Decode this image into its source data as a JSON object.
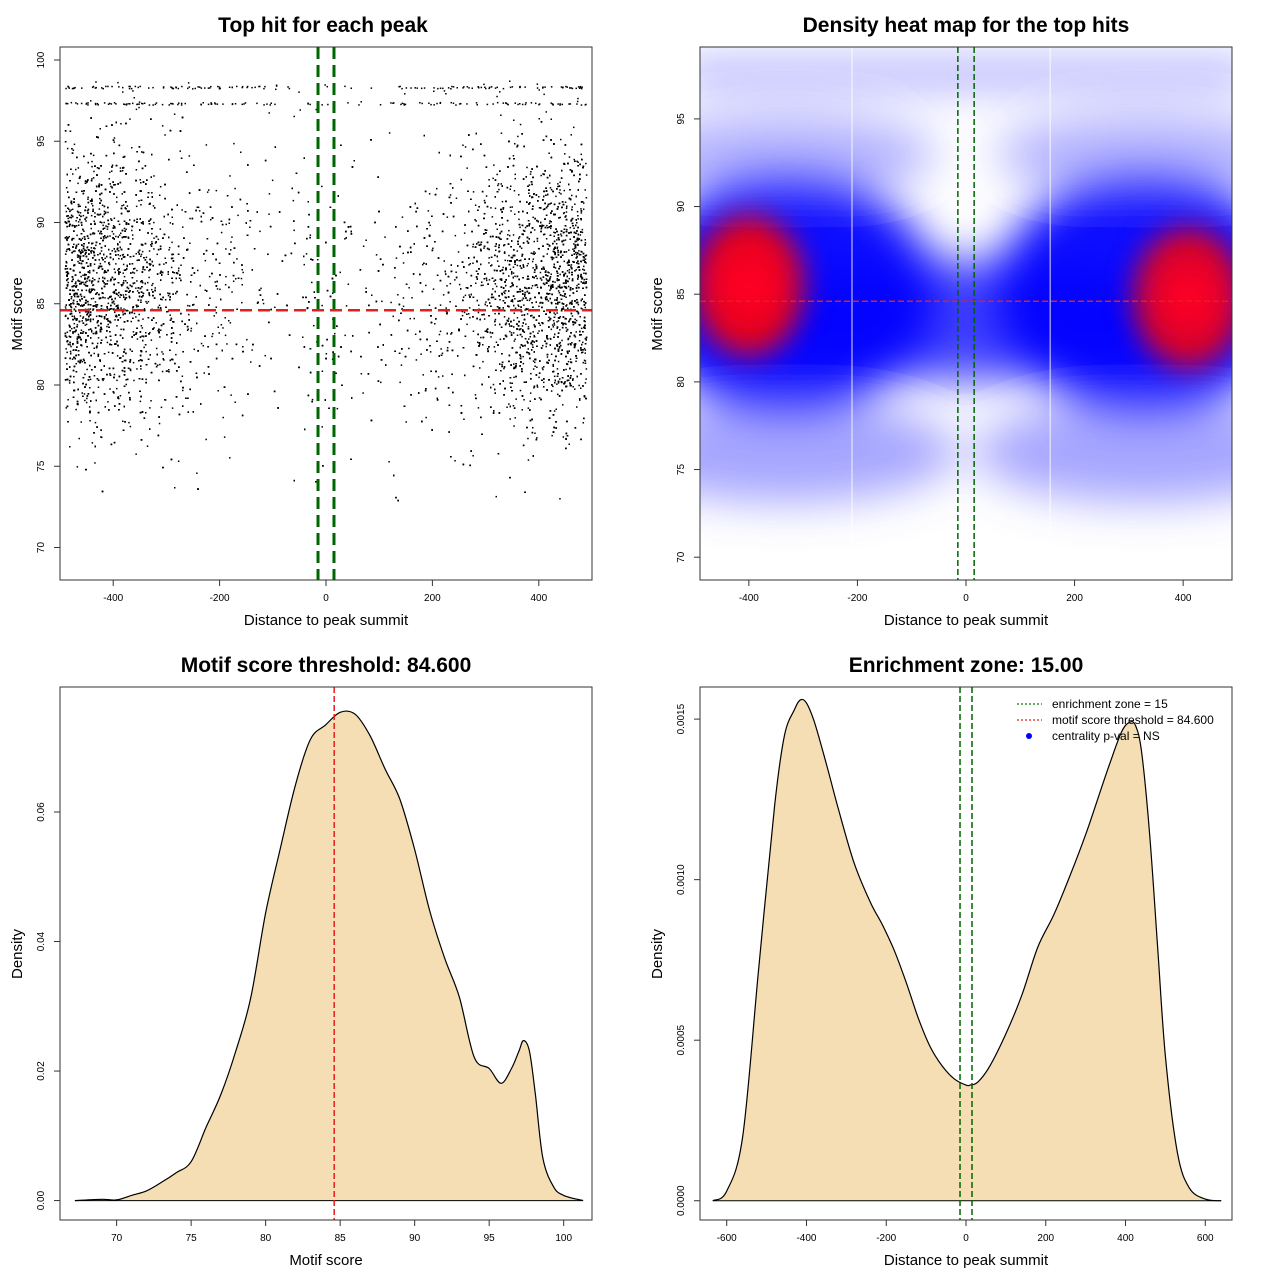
{
  "chart_data": [
    {
      "type": "scatter",
      "title": "Top hit for each peak",
      "xlabel": "Distance to peak summit",
      "ylabel": "Motif score",
      "xlim": [
        -500,
        500
      ],
      "ylim": [
        68,
        100.8
      ],
      "xticks": [
        -400,
        -200,
        0,
        200,
        400
      ],
      "yticks": [
        70,
        75,
        80,
        85,
        90,
        95,
        100
      ],
      "point_color": "#000000",
      "enrichment_zone_lines": [
        -15,
        15
      ],
      "enrichment_line_color": "#006400",
      "threshold": 84.6,
      "threshold_color": "#e0201f",
      "density_description_points": [
        {
          "x": -400,
          "y": 86,
          "weight": 1.0
        },
        {
          "x": -300,
          "y": 88,
          "weight": 0.6
        },
        {
          "x": -200,
          "y": 84,
          "weight": 0.45
        },
        {
          "x": 0,
          "y": 84,
          "weight": 0.15
        },
        {
          "x": 200,
          "y": 84,
          "weight": 0.45
        },
        {
          "x": 300,
          "y": 88,
          "weight": 0.6
        },
        {
          "x": 400,
          "y": 85,
          "weight": 1.0
        }
      ],
      "bands": [
        97.3,
        98.3
      ]
    },
    {
      "type": "heatmap",
      "title": "Density heat map for the top hits",
      "xlabel": "Distance to peak summit",
      "ylabel": "Motif score",
      "xlim": [
        -490,
        490
      ],
      "ylim": [
        68.7,
        99.1
      ],
      "xticks": [
        -400,
        -200,
        0,
        200,
        400
      ],
      "yticks": [
        70,
        75,
        80,
        85,
        90,
        95
      ],
      "colors": [
        "#ffffff",
        "#0000ff",
        "#ff0000"
      ],
      "hotspots": [
        {
          "x": -400,
          "y": 85.5,
          "intensity": 1.0
        },
        {
          "x": 410,
          "y": 84.8,
          "intensity": 0.95
        }
      ],
      "vertical_white_lines": [
        -210,
        155
      ],
      "enrichment_zone_lines": [
        -15,
        15
      ],
      "threshold": 84.6
    },
    {
      "type": "area",
      "title": "Motif score threshold: 84.600",
      "xlabel": "Motif score",
      "ylabel": "Density",
      "xlim": [
        66.2,
        101.9
      ],
      "ylim": [
        -0.003,
        0.0793
      ],
      "xticks": [
        70,
        75,
        80,
        85,
        90,
        95,
        100
      ],
      "yticks": [
        0.0,
        0.02,
        0.04,
        0.06
      ],
      "ytick_labels": [
        "0.00",
        "0.02",
        "0.04",
        "0.06"
      ],
      "fill_color": "#f5deb3",
      "threshold": 84.6,
      "threshold_color": "#e0201f",
      "x": [
        67.2,
        69,
        70,
        71,
        72,
        73,
        74,
        75,
        76,
        77,
        78,
        79,
        80,
        81,
        82,
        83,
        84,
        85,
        86,
        87,
        88,
        89,
        90,
        91,
        92,
        93,
        94,
        95,
        95.8,
        96.5,
        97,
        97.3,
        97.7,
        98.1,
        98.6,
        99.3,
        100,
        101.3
      ],
      "values": [
        0.0,
        0.0002,
        0.0001,
        0.0008,
        0.0015,
        0.0028,
        0.0043,
        0.006,
        0.0113,
        0.0164,
        0.0231,
        0.0313,
        0.0444,
        0.0545,
        0.0642,
        0.0712,
        0.0734,
        0.0754,
        0.0751,
        0.0718,
        0.0667,
        0.062,
        0.0542,
        0.0448,
        0.0375,
        0.0314,
        0.0221,
        0.0204,
        0.0181,
        0.0204,
        0.0231,
        0.0247,
        0.0231,
        0.0164,
        0.0066,
        0.0022,
        0.0008,
        0.0
      ]
    },
    {
      "type": "area",
      "title": "Enrichment zone: 15.00",
      "xlabel": "Distance to peak summit",
      "ylabel": "Density",
      "xlim": [
        -667,
        667
      ],
      "ylim": [
        -6e-05,
        0.0016
      ],
      "xticks": [
        -600,
        -400,
        -200,
        0,
        200,
        400,
        600
      ],
      "yticks": [
        0.0,
        0.0005,
        0.001,
        0.0015
      ],
      "ytick_labels": [
        "0.0000",
        "0.0005",
        "0.0010",
        "0.0015"
      ],
      "fill_color": "#f5deb3",
      "enrichment_zone_lines": [
        -15,
        15
      ],
      "x": [
        -635,
        -600,
        -560,
        -520,
        -480,
        -455,
        -430,
        -415,
        -400,
        -380,
        -350,
        -320,
        -280,
        -240,
        -210,
        -180,
        -150,
        -120,
        -90,
        -60,
        -30,
        0,
        10,
        30,
        60,
        100,
        140,
        180,
        220,
        260,
        300,
        330,
        360,
        390,
        410,
        425,
        440,
        460,
        480,
        500,
        530,
        560,
        600,
        640
      ],
      "values": [
        0.0,
        3e-05,
        0.0002,
        0.00072,
        0.00123,
        0.00145,
        0.00153,
        0.00156,
        0.00155,
        0.00149,
        0.00136,
        0.00122,
        0.00105,
        0.00093,
        0.00086,
        0.00078,
        0.00068,
        0.00057,
        0.00048,
        0.00042,
        0.00038,
        0.00036,
        0.00036,
        0.00037,
        0.00042,
        0.00052,
        0.00064,
        0.00079,
        0.00089,
        0.00101,
        0.00114,
        0.00125,
        0.00136,
        0.00146,
        0.00149,
        0.00148,
        0.0014,
        0.00115,
        0.0008,
        0.00045,
        0.00015,
        4e-05,
        5e-06,
        0.0
      ]
    }
  ],
  "legend": {
    "items": [
      {
        "label": "enrichment zone = 15",
        "color": "#008000",
        "style": "dotted"
      },
      {
        "label": "motif score threshold = 84.600",
        "color": "#e0201f",
        "style": "dotted"
      },
      {
        "label": "centrality p-val = NS",
        "color": "#0000ff",
        "style": "point"
      }
    ]
  }
}
